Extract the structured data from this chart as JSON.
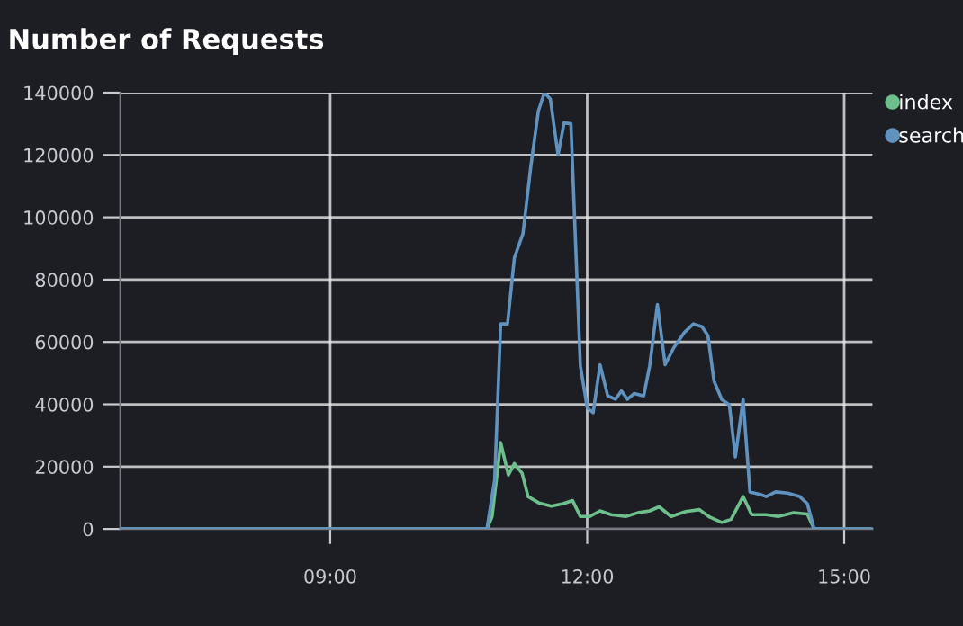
{
  "chart_data": {
    "type": "line",
    "title": "Number of Requests",
    "xlim": [
      6.55,
      15.33
    ],
    "xticks": [
      {
        "value": 9,
        "label": "09:00"
      },
      {
        "value": 12,
        "label": "12:00"
      },
      {
        "value": 15,
        "label": "15:00"
      }
    ],
    "ylim": [
      0,
      140000
    ],
    "yticks": [
      0,
      20000,
      40000,
      60000,
      80000,
      100000,
      120000,
      140000
    ],
    "grid": true,
    "legend": "top right",
    "marker": "none",
    "line_style": "solid",
    "series": [
      {
        "name": "index",
        "color": "#6dbf8b",
        "x": [
          6.55,
          10.83,
          10.89,
          10.99,
          11.08,
          11.15,
          11.24,
          11.31,
          11.44,
          11.58,
          11.72,
          11.83,
          11.92,
          12.03,
          12.15,
          12.28,
          12.45,
          12.59,
          12.73,
          12.84,
          12.98,
          13.15,
          13.31,
          13.43,
          13.57,
          13.68,
          13.82,
          13.92,
          14.09,
          14.23,
          14.41,
          14.57,
          14.65,
          15.33
        ],
        "values": [
          0,
          0,
          4000,
          27700,
          17300,
          21000,
          17900,
          10400,
          8300,
          7300,
          8100,
          9100,
          4000,
          4000,
          5800,
          4600,
          4000,
          5200,
          5800,
          7100,
          4000,
          5600,
          6200,
          3800,
          2100,
          3100,
          10400,
          4600,
          4600,
          4000,
          5200,
          4800,
          0,
          0
        ]
      },
      {
        "name": "search",
        "color": "#6092c0",
        "x": [
          6.55,
          10.83,
          10.92,
          10.99,
          11.07,
          11.15,
          11.25,
          11.34,
          11.43,
          11.5,
          11.57,
          11.66,
          11.73,
          11.81,
          11.92,
          12.0,
          12.07,
          12.15,
          12.24,
          12.33,
          12.4,
          12.47,
          12.55,
          12.66,
          12.73,
          12.82,
          12.91,
          13.01,
          13.13,
          13.24,
          13.34,
          13.41,
          13.48,
          13.57,
          13.66,
          13.73,
          13.82,
          13.9,
          14.03,
          14.09,
          14.2,
          14.34,
          14.48,
          14.57,
          14.65,
          15.33
        ],
        "values": [
          0,
          0,
          15800,
          65800,
          65800,
          87000,
          94700,
          115900,
          134100,
          140000,
          138000,
          120000,
          130300,
          130000,
          52400,
          38900,
          37300,
          52700,
          42700,
          41600,
          44300,
          41600,
          43500,
          42700,
          52400,
          72000,
          52700,
          58100,
          62900,
          65800,
          64900,
          62000,
          47500,
          41600,
          39800,
          23100,
          41600,
          11900,
          11000,
          10400,
          11900,
          11500,
          10400,
          8100,
          0,
          0
        ]
      }
    ]
  }
}
